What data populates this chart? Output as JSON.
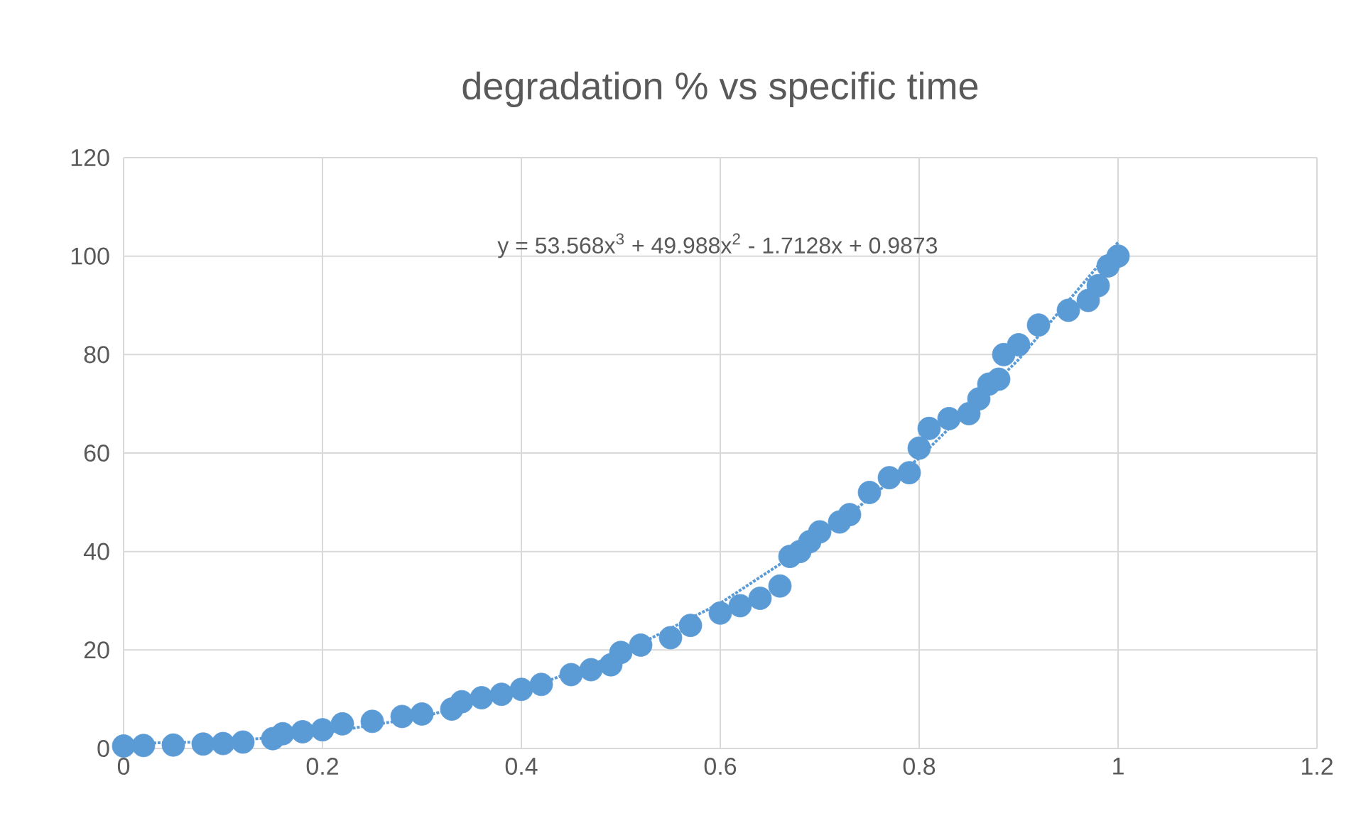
{
  "chart_data": {
    "type": "scatter",
    "title": "degradation % vs specific time",
    "xlim": [
      0,
      1.2
    ],
    "xticks": [
      0,
      0.2,
      0.4,
      0.6,
      0.8,
      1,
      1.2
    ],
    "ylim": [
      0,
      120
    ],
    "yticks": [
      0,
      20,
      40,
      60,
      80,
      100,
      120
    ],
    "grid": true,
    "annotations": [
      "y = 53.568x$^{3}$ + 49.988x$^{2}$ - 1.7128x + 0.9873"
    ],
    "series": [
      {
        "color": "#5b9bd5",
        "marker": "circle",
        "x": [
          0,
          0.02,
          0.05,
          0.08,
          0.1,
          0.12,
          0.15,
          0.16,
          0.18,
          0.2,
          0.22,
          0.25,
          0.28,
          0.3,
          0.33,
          0.34,
          0.36,
          0.38,
          0.4,
          0.42,
          0.45,
          0.47,
          0.49,
          0.5,
          0.52,
          0.55,
          0.57,
          0.6,
          0.62,
          0.64,
          0.66,
          0.67,
          0.68,
          0.69,
          0.7,
          0.72,
          0.73,
          0.75,
          0.77,
          0.79,
          0.8,
          0.81,
          0.83,
          0.85,
          0.86,
          0.87,
          0.88,
          0.885,
          0.9,
          0.92,
          0.95,
          0.97,
          0.98,
          0.99,
          1.0
        ],
        "values": [
          0.5,
          0.6,
          0.7,
          0.9,
          1,
          1.3,
          2,
          3,
          3.4,
          3.8,
          5,
          5.5,
          6.5,
          7,
          8,
          9.5,
          10.3,
          11,
          12,
          13,
          15,
          16,
          17,
          19.5,
          21,
          22.5,
          25,
          27.5,
          29,
          30.5,
          33,
          39,
          40,
          42,
          44,
          46,
          47.5,
          52,
          55,
          56,
          61,
          65,
          67,
          68,
          71,
          74,
          75,
          80,
          82,
          86,
          89,
          91,
          94,
          98,
          100
        ]
      },
      {
        "type": "line",
        "color": "#5b9bd5",
        "marker": "none",
        "line_style": "dotted",
        "x": [
          0,
          0.1,
          0.2,
          0.3,
          0.4,
          0.5,
          0.6,
          0.7,
          0.8,
          0.9,
          1.0
        ],
        "values": [
          1,
          1.4,
          3.1,
          6.4,
          11.7,
          19.3,
          29.5,
          42.7,
          59,
          79,
          102.8
        ]
      }
    ]
  }
}
